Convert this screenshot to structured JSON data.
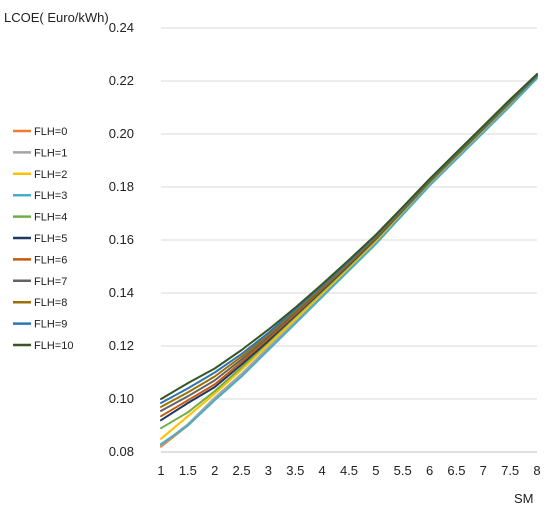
{
  "chart_data": {
    "type": "line",
    "ylabel": "LCOE( Euro/kWh)",
    "xlabel": "SM",
    "x": [
      1,
      1.5,
      2,
      2.5,
      3,
      3.5,
      4,
      4.5,
      5,
      5.5,
      6,
      6.5,
      7,
      7.5,
      8
    ],
    "x_tick_labels": [
      "1",
      "1.5",
      "2",
      "2.5",
      "3",
      "3.5",
      "4",
      "4.5",
      "5",
      "5.5",
      "6",
      "6.5",
      "7",
      "7.5",
      "8"
    ],
    "ylim": [
      0.08,
      0.24
    ],
    "y_ticks": [
      0.08,
      0.1,
      0.12,
      0.14,
      0.16,
      0.18,
      0.2,
      0.22,
      0.24
    ],
    "y_tick_labels": [
      "0.08",
      "0.10",
      "0.12",
      "0.14",
      "0.16",
      "0.18",
      "0.20",
      "0.22",
      "0.24"
    ],
    "grid": "horizontal",
    "legend_position": "left",
    "series": [
      {
        "name": "FLH=0",
        "color": "#ED7D31",
        "values": [
          0.082,
          0.09,
          0.1,
          0.109,
          0.119,
          0.129,
          0.139,
          0.149,
          0.159,
          0.17,
          0.181,
          0.191,
          0.201,
          0.211,
          0.2215
        ]
      },
      {
        "name": "FLH=1",
        "color": "#A5A5A5",
        "values": [
          0.0825,
          0.0905,
          0.1005,
          0.1095,
          0.1195,
          0.1293,
          0.1393,
          0.1492,
          0.1592,
          0.1702,
          0.1812,
          0.1912,
          0.2012,
          0.2112,
          0.2216
        ]
      },
      {
        "name": "FLH=2",
        "color": "#FFC000",
        "values": [
          0.085,
          0.0935,
          0.102,
          0.111,
          0.1205,
          0.13,
          0.1398,
          0.1496,
          0.1596,
          0.1705,
          0.1814,
          0.1914,
          0.2014,
          0.2114,
          0.2217
        ]
      },
      {
        "name": "FLH=3",
        "color": "#4BACC6",
        "values": [
          0.083,
          0.09,
          0.0995,
          0.1085,
          0.1185,
          0.1285,
          0.1385,
          0.1485,
          0.1585,
          0.1695,
          0.1805,
          0.1905,
          0.2005,
          0.2105,
          0.221
        ]
      },
      {
        "name": "FLH=4",
        "color": "#70AD47",
        "values": [
          0.089,
          0.095,
          0.103,
          0.112,
          0.1215,
          0.131,
          0.1405,
          0.1502,
          0.1602,
          0.1709,
          0.1818,
          0.1918,
          0.2018,
          0.2118,
          0.2218
        ]
      },
      {
        "name": "FLH=5",
        "color": "#1F3864",
        "values": [
          0.092,
          0.0985,
          0.1045,
          0.113,
          0.122,
          0.1315,
          0.141,
          0.1506,
          0.1605,
          0.1712,
          0.182,
          0.192,
          0.202,
          0.212,
          0.222
        ]
      },
      {
        "name": "FLH=6",
        "color": "#C55A11",
        "values": [
          0.0935,
          0.0995,
          0.1055,
          0.114,
          0.1228,
          0.132,
          0.1414,
          0.151,
          0.1608,
          0.1714,
          0.1822,
          0.1922,
          0.2022,
          0.2122,
          0.2221
        ]
      },
      {
        "name": "FLH=7",
        "color": "#636363",
        "values": [
          0.0955,
          0.101,
          0.107,
          0.115,
          0.1235,
          0.1326,
          0.1418,
          0.1513,
          0.1611,
          0.1716,
          0.1823,
          0.1923,
          0.2023,
          0.2123,
          0.2222
        ]
      },
      {
        "name": "FLH=8",
        "color": "#9E7000",
        "values": [
          0.097,
          0.1025,
          0.1085,
          0.116,
          0.1243,
          0.1332,
          0.1422,
          0.1516,
          0.1614,
          0.1718,
          0.1825,
          0.1925,
          0.2025,
          0.2125,
          0.2223
        ]
      },
      {
        "name": "FLH=9",
        "color": "#2E75B6",
        "values": [
          0.0985,
          0.104,
          0.11,
          0.117,
          0.125,
          0.1338,
          0.1427,
          0.152,
          0.1617,
          0.1721,
          0.1827,
          0.1927,
          0.2027,
          0.2127,
          0.2224
        ]
      },
      {
        "name": "FLH=10",
        "color": "#375623",
        "values": [
          0.1,
          0.106,
          0.1115,
          0.1185,
          0.1262,
          0.1345,
          0.1433,
          0.1525,
          0.162,
          0.1724,
          0.183,
          0.193,
          0.203,
          0.213,
          0.2226
        ]
      }
    ]
  }
}
